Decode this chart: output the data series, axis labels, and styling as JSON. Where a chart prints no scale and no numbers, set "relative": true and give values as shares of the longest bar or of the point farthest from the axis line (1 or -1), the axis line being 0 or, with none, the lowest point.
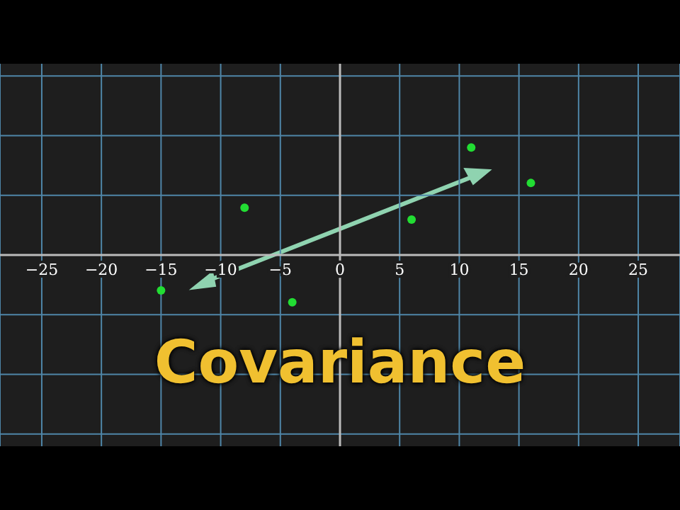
{
  "chart_data": {
    "type": "scatter",
    "title": "Covariance",
    "x": [
      -15,
      -8,
      -4,
      6,
      11,
      16
    ],
    "values": [
      -0.33,
      0.44,
      -0.44,
      0.33,
      1,
      0.67
    ],
    "color": "#22dd33",
    "relative": true,
    "marker": "circle",
    "grid": true,
    "xlim": [
      -28.5,
      28.5
    ],
    "xticks": [
      {
        "value": -25,
        "label": "−25"
      },
      {
        "value": -20,
        "label": "−20"
      },
      {
        "value": -15,
        "label": "−15"
      },
      {
        "value": -10,
        "label": "−10"
      },
      {
        "value": -5,
        "label": "−5"
      },
      0,
      5,
      10,
      15,
      20,
      25
    ]
  }
}
